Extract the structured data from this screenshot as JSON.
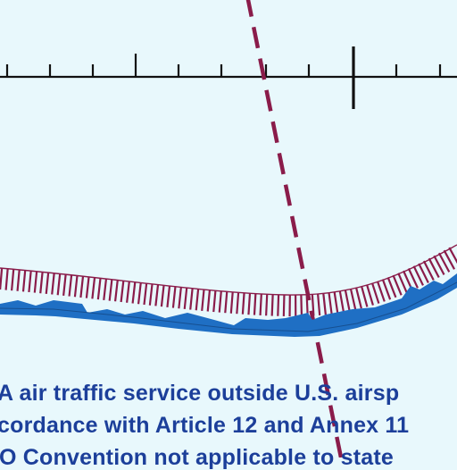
{
  "map": {
    "colors": {
      "background": "#e8f8fc",
      "route_dashed": "#8a1c4a",
      "boundary_hatch": "#8a1c4a",
      "boundary_band": "#1f6fc4",
      "scale_bar": "#111111",
      "note_text": "#1c3f9a"
    },
    "features": [
      "scale-bar",
      "dashed-route-line",
      "airspace-boundary"
    ]
  },
  "note": {
    "line1": "A air traffic service outside U.S. airsp",
    "line2": "cordance with Article 12 and Annex 11",
    "line3": "O Convention not applicable to state"
  }
}
